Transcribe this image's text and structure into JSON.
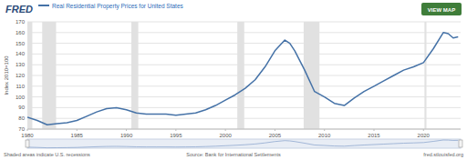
{
  "chart_data": {
    "type": "line",
    "logo": "FRED",
    "button": "VIEW MAP",
    "y_label": "Index 2010=100",
    "note": "Shaded areas indicate U.S. recessions",
    "source": "Source: Bank for International Settlements",
    "credit": "fred.stlouisfed.org",
    "legend": "top",
    "grid": true,
    "x": [
      1980,
      1981,
      1982,
      1983,
      1984,
      1985,
      1986,
      1987,
      1988,
      1989,
      1990,
      1991,
      1992,
      1993,
      1994,
      1995,
      1996,
      1997,
      1998,
      1999,
      2000,
      2001,
      2002,
      2003,
      2004,
      2005,
      2006,
      2006.5,
      2007,
      2008,
      2009,
      2010,
      2011,
      2012,
      2013,
      2014,
      2015,
      2016,
      2017,
      2018,
      2019,
      2020,
      2021,
      2022,
      2022.5,
      2023,
      2023.5
    ],
    "series": [
      {
        "name": "Real Residential Property Prices for United States",
        "color": "#4572a7",
        "values": [
          81,
          78,
          74,
          75,
          76,
          78,
          82,
          86,
          89,
          90,
          88,
          85,
          84,
          84,
          84,
          83,
          84,
          85,
          88,
          92,
          97,
          102,
          108,
          116,
          128,
          143,
          153,
          150,
          143,
          125,
          105,
          100,
          94,
          92,
          99,
          105,
          110,
          115,
          120,
          125,
          128,
          132,
          145,
          160,
          159,
          155,
          156
        ]
      }
    ],
    "recessions": [
      {
        "start": 1980.0,
        "end": 1980.5
      },
      {
        "start": 1981.5,
        "end": 1982.9
      },
      {
        "start": 1990.5,
        "end": 1991.2
      },
      {
        "start": 2001.2,
        "end": 2001.9
      },
      {
        "start": 2007.9,
        "end": 2009.5
      },
      {
        "start": 2020.1,
        "end": 2020.3
      }
    ],
    "xlim": [
      1980,
      2023.75
    ],
    "xticks": [
      1980,
      1985,
      1990,
      1995,
      2000,
      2005,
      2010,
      2015,
      2020
    ],
    "ylim": [
      70,
      170
    ],
    "yticks": [
      70,
      80,
      90,
      100,
      110,
      120,
      130,
      140,
      150,
      160,
      170
    ]
  }
}
